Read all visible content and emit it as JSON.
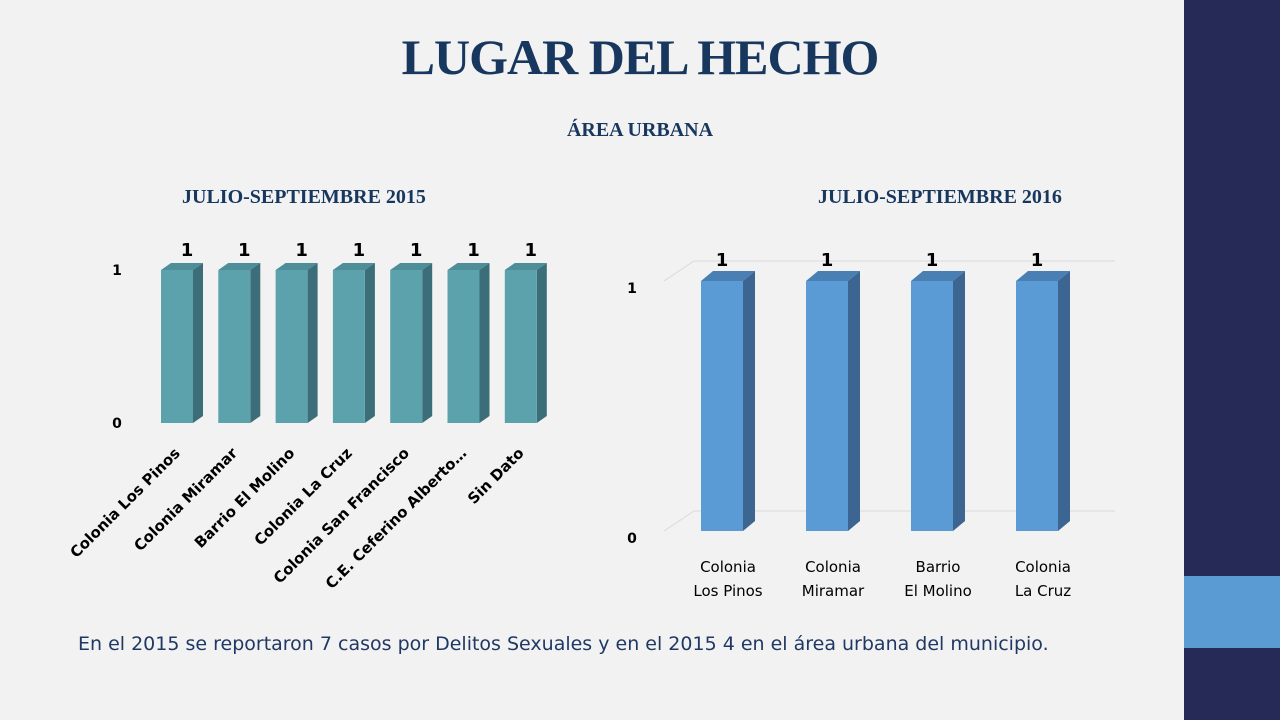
{
  "slide": {
    "title": "LUGAR DEL HECHO",
    "subtitle": "ÁREA URBANA",
    "caption": "En el 2015 se reportaron 7 casos por Delitos Sexuales y en el 2015 4 en el área urbana del municipio.",
    "colors": {
      "sidebar": "#262a56",
      "sidebar_accent": "#5b9bd3",
      "title": "#17375e",
      "caption": "#1f3864"
    }
  },
  "chart_data": [
    {
      "type": "bar",
      "title": "JULIO-SEPTIEMBRE 2015",
      "categories": [
        "Colonia Los Pinos",
        "Colonia Miramar",
        "Barrio El Molino",
        "Colonia La Cruz",
        "Colonia San Francisco",
        "C.E. Ceferino Alberto…",
        "Sin Dato"
      ],
      "values": [
        1,
        1,
        1,
        1,
        1,
        1,
        1
      ],
      "data_labels": [
        "1",
        "1",
        "1",
        "1",
        "1",
        "1",
        "1"
      ],
      "yticks": [
        "0",
        "1"
      ],
      "ylim": [
        0,
        1
      ],
      "grid": false,
      "style": "3d-column",
      "colors": {
        "front": "#5ba2ad",
        "side": "#3b6e78",
        "top": "#4d8e99"
      }
    },
    {
      "type": "bar",
      "title": "JULIO-SEPTIEMBRE 2016",
      "categories": [
        "Colonia Los Pinos",
        "Colonia Miramar",
        "Barrio El Molino",
        "Colonia La Cruz"
      ],
      "values": [
        1,
        1,
        1,
        1
      ],
      "data_labels": [
        "1",
        "1",
        "1",
        "1"
      ],
      "yticks": [
        "0",
        "1"
      ],
      "ylim": [
        0,
        1
      ],
      "grid": true,
      "style": "3d-column",
      "colors": {
        "front": "#5b9bd5",
        "side": "#3c6591",
        "top": "#4a7fb4"
      }
    }
  ]
}
